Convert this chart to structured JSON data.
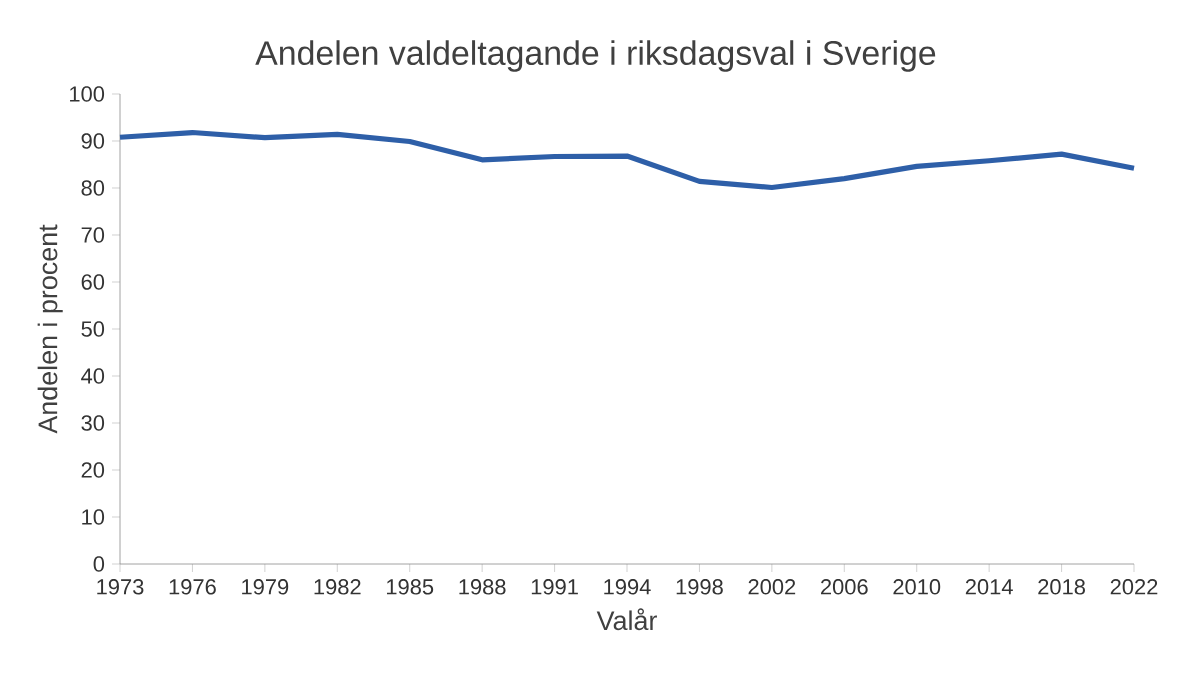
{
  "chart_data": {
    "type": "line",
    "title": "Andelen valdeltagande i riksdagsval i Sverige",
    "xlabel": "Valår",
    "ylabel": "Andelen i procent",
    "categories": [
      "1973",
      "1976",
      "1979",
      "1982",
      "1985",
      "1988",
      "1991",
      "1994",
      "1998",
      "2002",
      "2006",
      "2010",
      "2014",
      "2018",
      "2022"
    ],
    "series": [
      {
        "color": "#2e5fa8",
        "values": [
          90.8,
          91.8,
          90.7,
          91.4,
          89.9,
          86.0,
          86.7,
          86.8,
          81.4,
          80.1,
          82.0,
          84.6,
          85.8,
          87.2,
          84.2
        ]
      }
    ],
    "ylim": [
      0,
      100
    ],
    "yticks": [
      0,
      10,
      20,
      30,
      40,
      50,
      60,
      70,
      80,
      90,
      100
    ],
    "grid": false,
    "marker": "none",
    "line_style": "solid"
  }
}
